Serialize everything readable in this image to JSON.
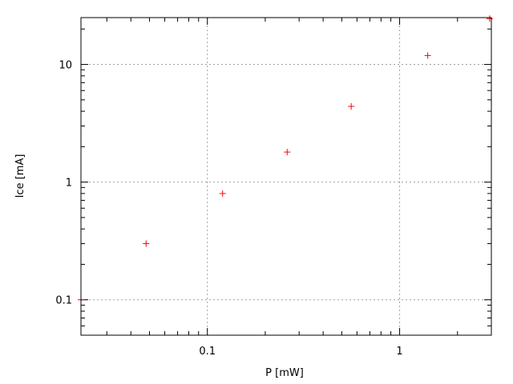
{
  "chart_data": {
    "type": "scatter",
    "title": "",
    "xlabel": "P [mW]",
    "ylabel": "Ice [mA]",
    "xscale": "log",
    "yscale": "log",
    "xlim": [
      0.022,
      3
    ],
    "ylim": [
      0.05,
      25
    ],
    "xticks": [
      {
        "value": 0.1,
        "label": "0.1"
      },
      {
        "value": 1,
        "label": "1"
      }
    ],
    "yticks": [
      {
        "value": 0.1,
        "label": "0.1"
      },
      {
        "value": 1,
        "label": "1"
      },
      {
        "value": 10,
        "label": "10"
      }
    ],
    "grid": true,
    "marker": "plus",
    "color": "#ff0000",
    "series": [
      {
        "x": [
          0.022,
          0.048,
          0.12,
          0.26,
          0.56,
          1.4,
          2.94
        ],
        "y": [
          0.1,
          0.3,
          0.8,
          1.8,
          4.4,
          11.9,
          24.5
        ]
      }
    ]
  }
}
